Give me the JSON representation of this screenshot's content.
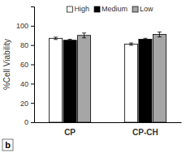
{
  "chart_data": {
    "type": "bar",
    "y_label": "%Cell Viability",
    "categories": [
      "CP",
      "CP-CH"
    ],
    "series": [
      {
        "name": "High",
        "color": "#ffffff",
        "values": [
          87,
          81
        ],
        "errors": [
          1.2,
          1.2
        ]
      },
      {
        "name": "Medium",
        "color": "#000000",
        "values": [
          85,
          86
        ],
        "errors": [
          1.0,
          1.0
        ]
      },
      {
        "name": "Low",
        "color": "#a6a6a6",
        "values": [
          90,
          91
        ],
        "errors": [
          2.5,
          2.5
        ]
      }
    ],
    "ylim": [
      0,
      120
    ],
    "yticks": [
      0,
      20,
      40,
      60,
      80,
      100
    ],
    "legend": "top",
    "annotations": [
      "b"
    ],
    "grid": false
  }
}
